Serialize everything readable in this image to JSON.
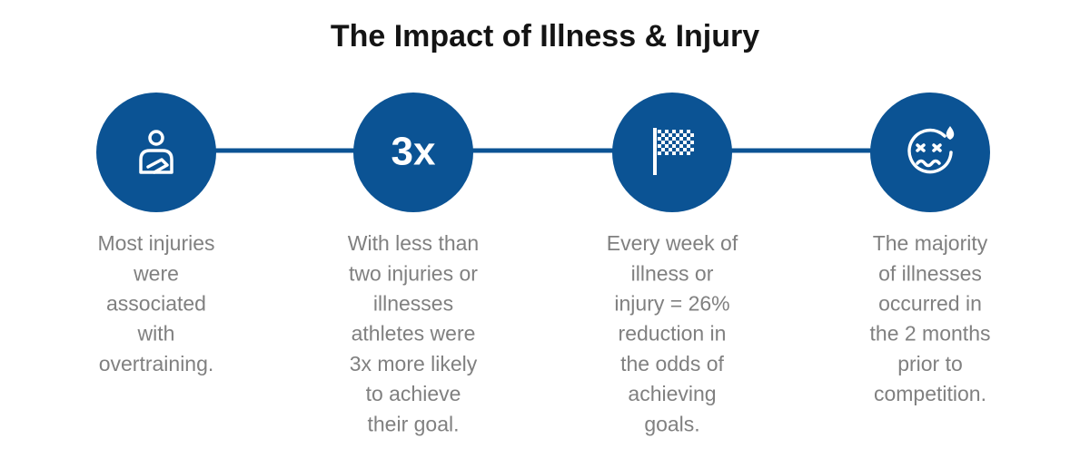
{
  "title": "The Impact of Illness & Injury",
  "items": [
    {
      "lines": [
        "Most injuries",
        "were",
        "associated",
        "with",
        "overtraining."
      ]
    },
    {
      "badge": "3x",
      "lines": [
        "With less than",
        "two injuries or",
        "illnesses",
        "athletes were",
        "3x more likely",
        "to achieve",
        "their goal."
      ]
    },
    {
      "lines": [
        "Every week of",
        "illness or",
        "injury = 26%",
        "reduction in",
        "the odds of",
        "achieving",
        "goals."
      ]
    },
    {
      "lines": [
        "The majority",
        "of illnesses",
        "occurred in",
        "the 2 months",
        "prior to",
        "competition."
      ]
    }
  ]
}
